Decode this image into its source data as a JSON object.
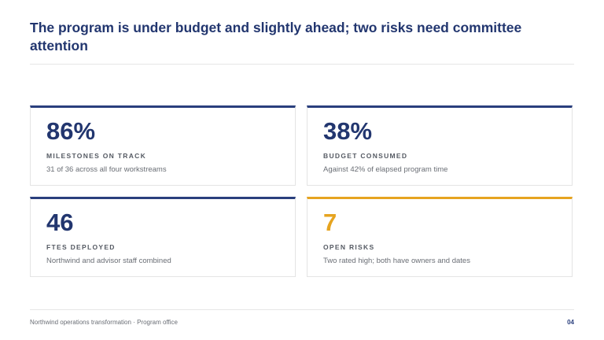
{
  "slide": {
    "title": "The program is under budget and slightly ahead; two risks need committee attention"
  },
  "metrics": [
    {
      "value": "86%",
      "label": "MILESTONES ON TRACK",
      "description": "31 of 36 across all four workstreams",
      "accent_color": "#2a3f7d"
    },
    {
      "value": "38%",
      "label": "BUDGET CONSUMED",
      "description": "Against 42% of elapsed program time",
      "accent_color": "#2a3f7d"
    },
    {
      "value": "46",
      "label": "FTES DEPLOYED",
      "description": "Northwind and advisor staff combined",
      "accent_color": "#2a3f7d"
    },
    {
      "value": "7",
      "label": "OPEN RISKS",
      "description": "Two rated high; both have owners and dates",
      "accent_color": "#e6a420"
    }
  ],
  "footer": {
    "text": "Northwind operations transformation · Program office",
    "page_number": "04"
  },
  "colors": {
    "primary": "#22366f",
    "accent": "#e6a420",
    "muted_text": "#6a6e75"
  }
}
